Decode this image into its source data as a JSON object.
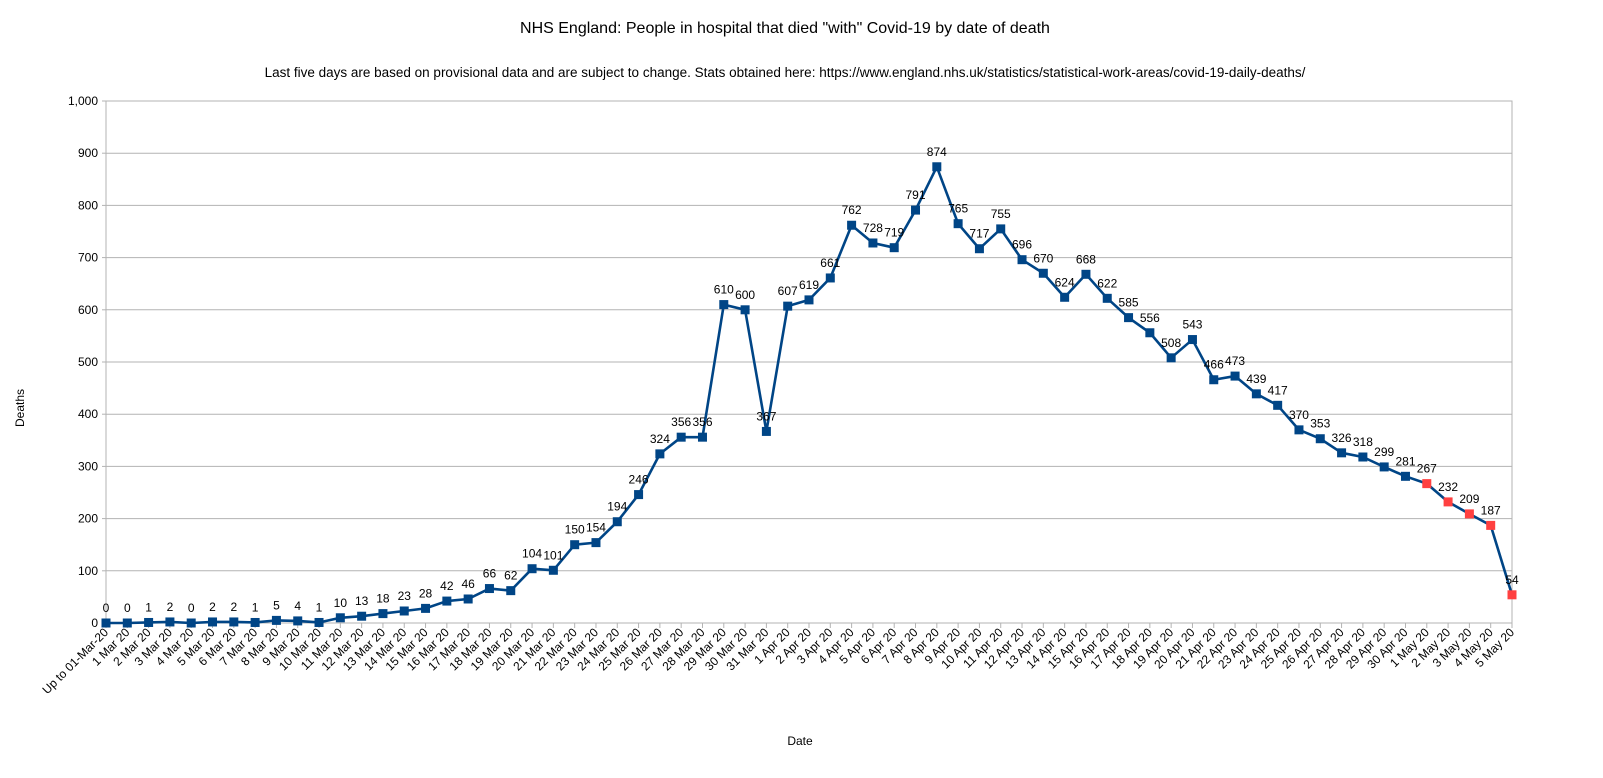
{
  "chart_data": {
    "type": "line",
    "title": "NHS England: People in hospital that died \"with\" Covid-19 by date of death",
    "subtitle": "Last five days are based on provisional data and are subject to change. Stats obtained here: https://www.england.nhs.uk/statistics/statistical-work-areas/covid-19-daily-deaths/",
    "xlabel": "Date",
    "ylabel": "Deaths",
    "ylim": [
      0,
      1000
    ],
    "yticks": [
      0,
      100,
      200,
      300,
      400,
      500,
      600,
      700,
      800,
      900,
      1000
    ],
    "ytick_labels": [
      "0",
      "100",
      "200",
      "300",
      "400",
      "500",
      "600",
      "700",
      "800",
      "900",
      "1,000"
    ],
    "grid": true,
    "legend": "none",
    "colors": {
      "line": "#004586",
      "marker": "#004586",
      "provisional_marker": "#ff4040",
      "grid": "#b3b3b3"
    },
    "categories": [
      "Up to 01-Mar-20",
      "1 Mar 20",
      "2 Mar 20",
      "3 Mar 20",
      "4 Mar 20",
      "5 Mar 20",
      "6 Mar 20",
      "7 Mar 20",
      "8 Mar 20",
      "9 Mar 20",
      "10 Mar 20",
      "11 Mar 20",
      "12 Mar 20",
      "13 Mar 20",
      "14 Mar 20",
      "15 Mar 20",
      "16 Mar 20",
      "17 Mar 20",
      "18 Mar 20",
      "19 Mar 20",
      "20 Mar 20",
      "21 Mar 20",
      "22 Mar 20",
      "23 Mar 20",
      "24 Mar 20",
      "25 Mar 20",
      "26 Mar 20",
      "27 Mar 20",
      "28 Mar 20",
      "29 Mar 20",
      "30 Mar 20",
      "31 Mar 20",
      "1 Apr 20",
      "2 Apr 20",
      "3 Apr 20",
      "4 Apr 20",
      "5 Apr 20",
      "6 Apr 20",
      "7 Apr 20",
      "8 Apr 20",
      "9 Apr 20",
      "10 Apr 20",
      "11 Apr 20",
      "12 Apr 20",
      "13 Apr 20",
      "14 Apr 20",
      "15 Apr 20",
      "16 Apr 20",
      "17 Apr 20",
      "18 Apr 20",
      "19 Apr 20",
      "20 Apr 20",
      "21 Apr 20",
      "22 Apr 20",
      "23 Apr 20",
      "24 Apr 20",
      "25 Apr 20",
      "26 Apr 20",
      "27 Apr 20",
      "28 Apr 20",
      "29 Apr 20",
      "30 Apr 20",
      "1 May 20",
      "2 May 20",
      "3 May 20",
      "4 May 20",
      "5 May 20"
    ],
    "series": [
      {
        "values": [
          0,
          0,
          1,
          2,
          0,
          2,
          2,
          1,
          5,
          4,
          1,
          10,
          13,
          18,
          23,
          28,
          42,
          46,
          66,
          62,
          104,
          101,
          150,
          154,
          194,
          246,
          324,
          356,
          356,
          610,
          600,
          367,
          607,
          619,
          661,
          762,
          728,
          719,
          791,
          874,
          765,
          717,
          755,
          696,
          670,
          624,
          668,
          622,
          585,
          556,
          508,
          543,
          466,
          473,
          439,
          417,
          370,
          353,
          326,
          318,
          299,
          281,
          267,
          232,
          209,
          187,
          54
        ],
        "provisional_from_category": "1 May 20"
      }
    ]
  }
}
